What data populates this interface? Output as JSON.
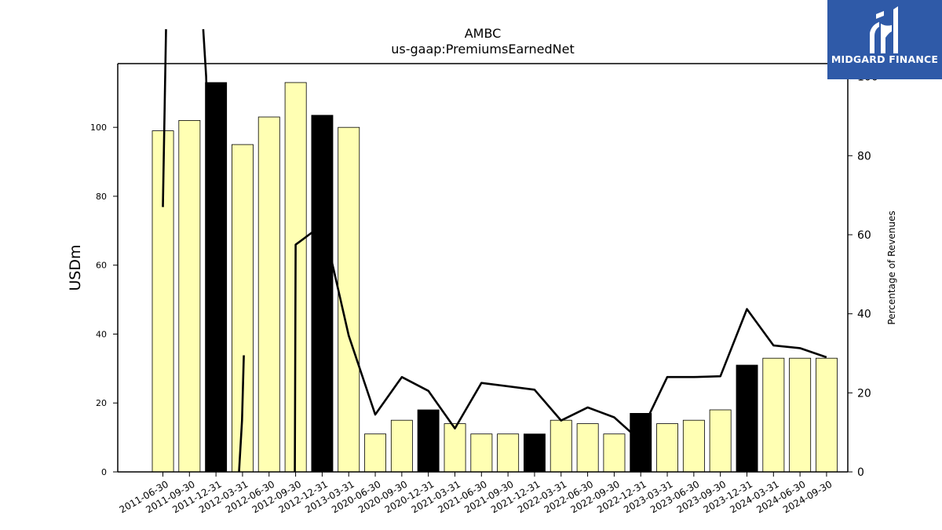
{
  "chart_data": {
    "type": "bar",
    "title": "AMBC",
    "subtitle": "us-gaap:PremiumsEarnedNet",
    "ylabel": "USDm",
    "y2label": "Percentage of Revenues",
    "ylim": [
      0,
      118.5
    ],
    "y2lim": [
      0,
      103.3
    ],
    "yticks": [
      0,
      20,
      40,
      60,
      80,
      100
    ],
    "y2ticks": [
      0,
      20,
      40,
      60,
      80,
      100
    ],
    "categories": [
      "2011-06-30",
      "2011-09-30",
      "2011-12-31",
      "2012-03-31",
      "2012-06-30",
      "2012-09-30",
      "2012-12-31",
      "2013-03-31",
      "2020-06-30",
      "2020-09-30",
      "2020-12-31",
      "2021-03-31",
      "2021-06-30",
      "2021-09-30",
      "2021-12-31",
      "2022-03-31",
      "2022-06-30",
      "2022-09-30",
      "2022-12-31",
      "2023-03-31",
      "2023-06-30",
      "2023-09-30",
      "2023-12-31",
      "2024-03-31",
      "2024-06-30",
      "2024-09-30"
    ],
    "series": [
      {
        "type": "bar",
        "values": [
          99,
          102,
          113,
          95,
          103,
          113,
          103.5,
          100,
          11,
          15,
          18,
          14,
          11,
          11,
          11,
          15,
          14,
          11,
          17,
          14,
          15,
          18,
          31,
          33,
          33,
          33
        ],
        "highlight": [
          false,
          false,
          true,
          false,
          false,
          false,
          true,
          false,
          false,
          false,
          true,
          false,
          false,
          false,
          true,
          false,
          false,
          false,
          true,
          false,
          false,
          false,
          true,
          false,
          false,
          false
        ],
        "color": "#ffffb3",
        "highlight_color": "#000000"
      },
      {
        "type": "line",
        "axis": "right",
        "color": "#000000",
        "segments": [
          [
            [
              0,
              67
            ],
            [
              0.12,
              112
            ]
          ],
          [
            [
              1.52,
              112
            ],
            [
              1.63,
              100
            ],
            [
              1.74,
              74
            ],
            [
              1.86,
              37
            ],
            [
              1.95,
              6
            ],
            [
              2.04,
              0
            ]
          ],
          [
            [
              2.87,
              0
            ],
            [
              2.98,
              13
            ],
            [
              3.05,
              29.5
            ]
          ],
          [
            [
              4.97,
              0
            ],
            [
              5.0,
              57.5
            ],
            [
              5.6,
              60.5
            ],
            [
              6.2,
              58
            ],
            [
              7,
              34.5
            ],
            [
              8,
              14.5
            ],
            [
              9,
              24
            ],
            [
              10,
              20.5
            ],
            [
              11,
              11
            ],
            [
              12,
              22.5
            ],
            [
              14,
              20.8
            ],
            [
              15,
              13
            ],
            [
              16,
              16.3
            ],
            [
              17,
              13.8
            ],
            [
              17.6,
              10.2
            ],
            [
              18,
              10
            ],
            [
              19,
              24
            ],
            [
              20,
              24
            ],
            [
              21,
              24.2
            ],
            [
              22,
              41.2
            ],
            [
              23,
              32
            ],
            [
              24,
              31.3
            ],
            [
              25,
              29
            ]
          ]
        ]
      }
    ],
    "grid": false,
    "legend": "none"
  },
  "logo": {
    "text": "MIDGARD FINANCE",
    "bg_color": "#2f5aa8"
  }
}
